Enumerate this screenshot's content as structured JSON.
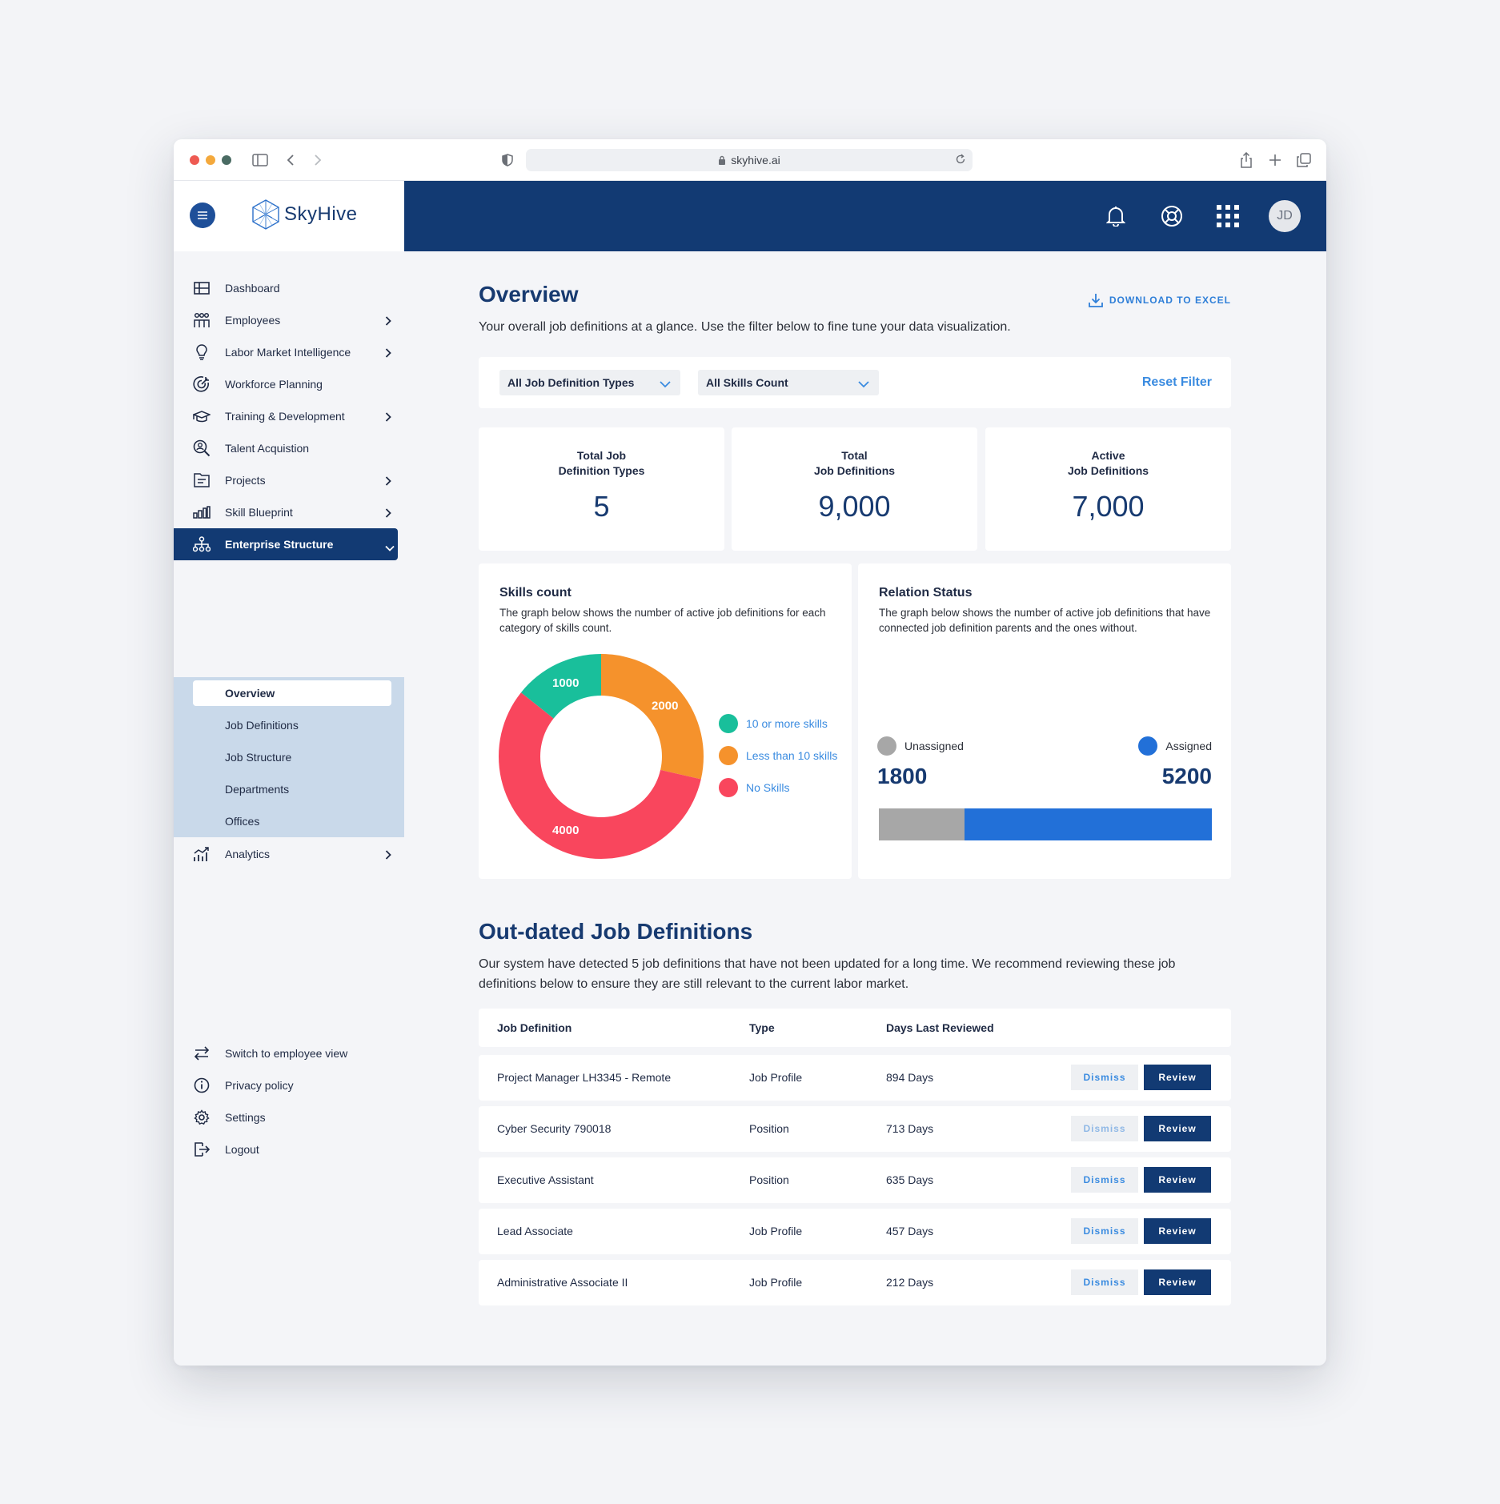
{
  "browser": {
    "url": "skyhive.ai"
  },
  "brand": {
    "name": "SkyHive"
  },
  "user": {
    "initials": "JD"
  },
  "sidebar": {
    "items": [
      {
        "label": "Dashboard"
      },
      {
        "label": "Employees"
      },
      {
        "label": "Labor Market Intelligence"
      },
      {
        "label": "Workforce Planning"
      },
      {
        "label": "Training & Development"
      },
      {
        "label": "Talent Acquistion"
      },
      {
        "label": "Projects"
      },
      {
        "label": "Skill Blueprint"
      },
      {
        "label": "Enterprise Structure"
      },
      {
        "label": "Analytics"
      }
    ],
    "subitems": [
      {
        "label": "Overview"
      },
      {
        "label": "Job Definitions"
      },
      {
        "label": "Job Structure"
      },
      {
        "label": "Departments"
      },
      {
        "label": "Offices"
      }
    ],
    "footer": [
      {
        "label": "Switch to employee view"
      },
      {
        "label": "Privacy policy"
      },
      {
        "label": "Settings"
      },
      {
        "label": "Logout"
      }
    ]
  },
  "overview": {
    "title": "Overview",
    "download_label": "DOWNLOAD TO EXCEL",
    "intro": "Your overall job definitions at a glance. Use the filter below to fine tune your data visualization."
  },
  "filters": {
    "type_value": "All Job Definition Types",
    "skills_value": "All Skills Count",
    "reset_label": "Reset Filter"
  },
  "stats": [
    {
      "label_line1": "Total Job",
      "label_line2": "Definition Types",
      "value": "5"
    },
    {
      "label_line1": "Total",
      "label_line2": "Job Definitions",
      "value": "9,000"
    },
    {
      "label_line1": "Active",
      "label_line2": "Job Definitions",
      "value": "7,000"
    }
  ],
  "skills_card": {
    "title": "Skills count",
    "description": "The graph below shows the number of active job definitions for each category of skills count."
  },
  "relation_card": {
    "title": "Relation Status",
    "description": "The graph below shows the number of active job definitions that have connected job definition parents and the ones without.",
    "unassigned_label": "Unassigned",
    "assigned_label": "Assigned",
    "unassigned_value": "1800",
    "assigned_value": "5200"
  },
  "chart_data": [
    {
      "type": "pie",
      "title": "Skills count",
      "categories": [
        "10 or more skills",
        "Less than 10 skills",
        "No Skills"
      ],
      "values": [
        1000,
        2000,
        4000
      ],
      "labels": [
        "1000",
        "2000",
        "4000"
      ],
      "colors": [
        "#19bf9b",
        "#f5922c",
        "#f9465d"
      ],
      "donut": true
    },
    {
      "type": "bar",
      "title": "Relation Status",
      "categories": [
        "Unassigned",
        "Assigned"
      ],
      "values": [
        1800,
        5200
      ],
      "colors": [
        "#a7a7a7",
        "#2270d8"
      ],
      "stacked": true
    }
  ],
  "outdated": {
    "title": "Out-dated Job Definitions",
    "description": "Our system have detected 5 job definitions that have not been updated for a long time. We recommend reviewing these job definitions below to ensure they are still relevant to the current labor market.",
    "columns": [
      "Job Definition",
      "Type",
      "Days Last Reviewed"
    ],
    "dismiss_label": "Dismiss",
    "review_label": "Review",
    "rows": [
      {
        "name": "Project Manager LH3345 - Remote",
        "type": "Job Profile",
        "days": "894 Days"
      },
      {
        "name": "Cyber Security 790018",
        "type": "Position",
        "days": "713 Days"
      },
      {
        "name": "Executive Assistant",
        "type": "Position",
        "days": "635 Days"
      },
      {
        "name": "Lead Associate",
        "type": "Job Profile",
        "days": "457 Days"
      },
      {
        "name": "Administrative Associate II",
        "type": "Job Profile",
        "days": "212 Days"
      }
    ]
  },
  "colors": {
    "navy": "#123a73",
    "accent": "#2f7fd8",
    "subnav_bg": "#c9d9ea"
  }
}
